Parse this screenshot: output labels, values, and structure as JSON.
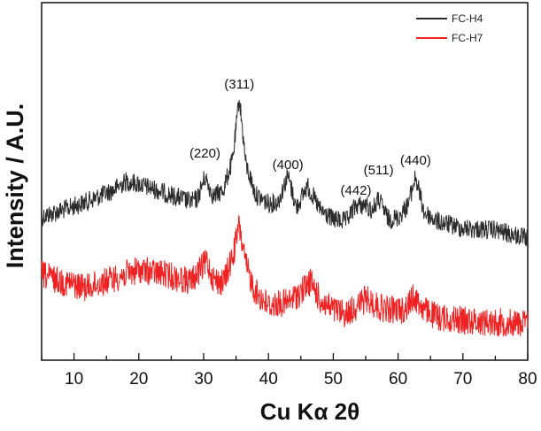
{
  "chart_data": {
    "type": "line",
    "xlabel": "Cu Kα 2θ",
    "ylabel": "Intensity  /  A.U.",
    "xlim": [
      5,
      80
    ],
    "x_ticks": [
      10,
      20,
      30,
      40,
      50,
      60,
      70,
      80
    ],
    "y_ticks_shown": false,
    "grid": false,
    "legend_placement": "top-right",
    "series": [
      {
        "name": "FC-H4",
        "color": "#2b2b2b",
        "x": [
          5,
          8,
          12,
          16,
          18,
          20,
          24,
          28,
          29,
          30.2,
          31.5,
          33,
          34.5,
          35.5,
          36.5,
          38,
          40,
          41.5,
          43,
          44.3,
          46,
          48,
          50,
          52,
          53.5,
          55,
          56,
          57,
          58.5,
          60,
          61.5,
          62.7,
          64,
          66,
          70,
          75,
          80
        ],
        "y": [
          245,
          238,
          228,
          215,
          205,
          208,
          218,
          228,
          225,
          200,
          222,
          215,
          180,
          110,
          185,
          220,
          230,
          228,
          198,
          235,
          210,
          238,
          248,
          250,
          232,
          232,
          238,
          225,
          248,
          246,
          232,
          200,
          240,
          250,
          258,
          260,
          270
        ]
      },
      {
        "name": "FC-H7",
        "color": "#ee2222",
        "x": [
          5,
          8,
          12,
          16,
          20,
          24,
          28,
          29.5,
          30.5,
          31.5,
          33,
          34.5,
          35.5,
          36.5,
          38,
          40,
          43,
          45,
          46.5,
          48,
          50,
          52,
          55,
          58,
          61,
          62.5,
          64,
          66,
          70,
          75,
          80
        ],
        "y": [
          310,
          318,
          325,
          315,
          305,
          310,
          318,
          305,
          295,
          315,
          320,
          290,
          255,
          300,
          330,
          345,
          342,
          330,
          318,
          340,
          350,
          355,
          338,
          350,
          350,
          335,
          350,
          358,
          362,
          364,
          365
        ]
      }
    ],
    "annotations": [
      {
        "label": "(220)",
        "x": 30.2
      },
      {
        "label": "(311)",
        "x": 35.5
      },
      {
        "label": "(400)",
        "x": 43.0
      },
      {
        "label": "(442)",
        "x": 53.5
      },
      {
        "label": "(511)",
        "x": 57.0
      },
      {
        "label": "(440)",
        "x": 62.7
      }
    ]
  }
}
